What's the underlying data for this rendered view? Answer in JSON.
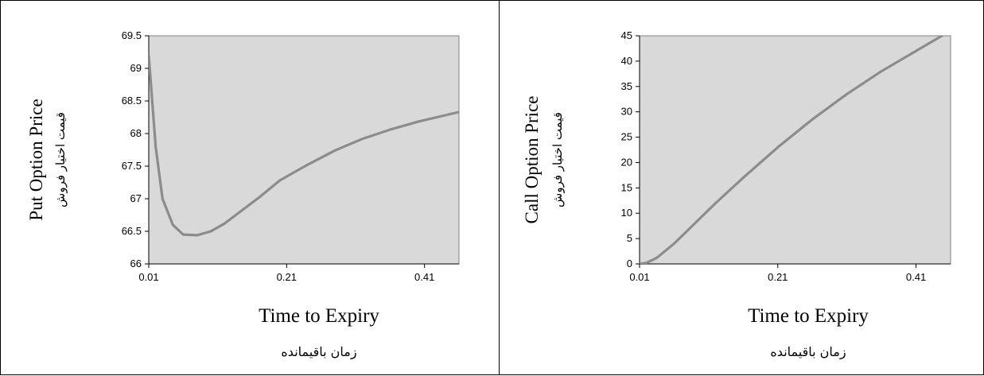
{
  "chart_data": [
    {
      "type": "line",
      "ylabel_en": "Put Option Price",
      "ylabel_fa": "قیمت اختیار فروش",
      "xlabel_en": "Time to Expiry",
      "xlabel_fa": "زمان باقیمانده",
      "xticks": [
        "0.01",
        "0.21",
        "0.41"
      ],
      "yticks": [
        "66",
        "66.5",
        "67",
        "67.5",
        "68",
        "68.5",
        "69",
        "69.5"
      ],
      "xlim": [
        0.01,
        0.46
      ],
      "ylim": [
        66,
        69.5
      ],
      "grid": false,
      "plot_background": "#d9d9d9",
      "line_color": "#8c8c8c",
      "x": [
        0.01,
        0.02,
        0.03,
        0.045,
        0.06,
        0.08,
        0.1,
        0.12,
        0.14,
        0.17,
        0.2,
        0.24,
        0.28,
        0.32,
        0.36,
        0.4,
        0.44,
        0.46
      ],
      "y": [
        69.2,
        67.8,
        67.0,
        66.6,
        66.45,
        66.44,
        66.5,
        66.62,
        66.78,
        67.02,
        67.28,
        67.52,
        67.74,
        67.92,
        68.06,
        68.18,
        68.28,
        68.33
      ]
    },
    {
      "type": "line",
      "ylabel_en": "Call Option Price",
      "ylabel_fa": "قیمت اختیار فروش",
      "xlabel_en": "Time to Expiry",
      "xlabel_fa": "زمان باقیمانده",
      "xticks": [
        "0.01",
        "0.21",
        "0.41"
      ],
      "yticks": [
        "0",
        "5",
        "10",
        "15",
        "20",
        "25",
        "30",
        "35",
        "40",
        "45"
      ],
      "xlim": [
        0.01,
        0.46
      ],
      "ylim": [
        0,
        45
      ],
      "grid": false,
      "plot_background": "#d9d9d9",
      "line_color": "#8c8c8c",
      "x": [
        0.01,
        0.02,
        0.035,
        0.06,
        0.09,
        0.12,
        0.16,
        0.21,
        0.26,
        0.31,
        0.36,
        0.41,
        0.46
      ],
      "y": [
        0.0,
        0.2,
        1.2,
        4.0,
        8.0,
        12.0,
        17.0,
        23.0,
        28.5,
        33.5,
        38.0,
        42.0,
        46.0
      ]
    }
  ]
}
